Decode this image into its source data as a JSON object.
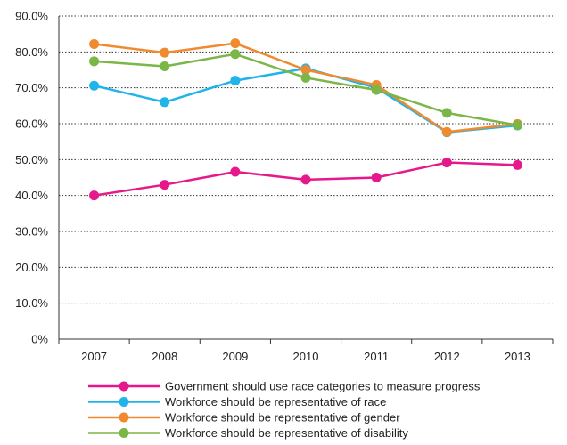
{
  "chart_data": {
    "type": "line",
    "categories": [
      "2007",
      "2008",
      "2009",
      "2010",
      "2011",
      "2012",
      "2013"
    ],
    "ylim": [
      0,
      90
    ],
    "yticks": [
      "0%",
      "10.0%",
      "20.0%",
      "30.0%",
      "40.0%",
      "50.0%",
      "60.0%",
      "70.0%",
      "80.0%",
      "90.0%"
    ],
    "grid": true,
    "legend_position": "bottom",
    "series": [
      {
        "name": "Government should use race categories to measure progress",
        "color": "#e6198c",
        "values": [
          40.0,
          43.0,
          46.6,
          44.4,
          45.0,
          49.2,
          48.5
        ]
      },
      {
        "name": "Workforce should be representative of race",
        "color": "#1fb4ea",
        "values": [
          70.6,
          66.0,
          72.0,
          75.4,
          70.0,
          57.6,
          59.5
        ]
      },
      {
        "name": "Workforce should be representative of gender",
        "color": "#f08a2e",
        "values": [
          82.2,
          79.8,
          82.4,
          75.0,
          70.8,
          57.7,
          59.9
        ]
      },
      {
        "name": "Workforce should be representative of disability",
        "color": "#7ab648",
        "values": [
          77.4,
          76.0,
          79.4,
          72.8,
          69.4,
          63.0,
          59.6
        ]
      }
    ]
  }
}
